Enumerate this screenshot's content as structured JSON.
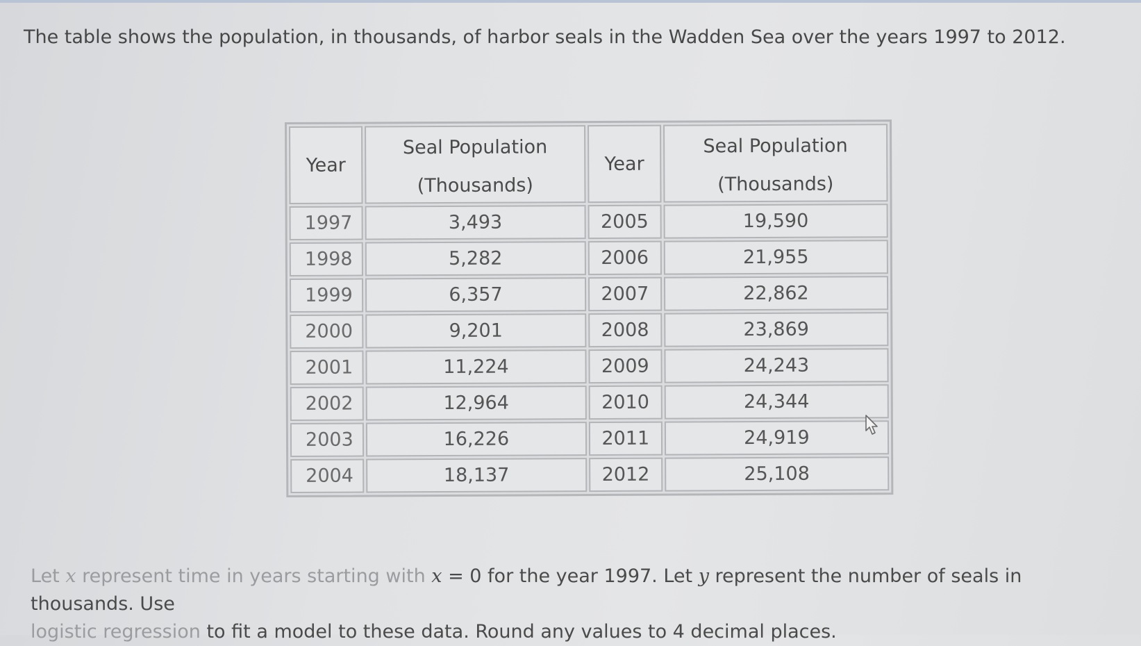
{
  "question": {
    "intro": "The table shows the population, in thousands, of harbor seals in the Wadden Sea over the years 1997 to 2012."
  },
  "table": {
    "headers": {
      "year": "Year",
      "population_line1": "Seal Population",
      "population_line2": "(Thousands)"
    },
    "left_rows": [
      {
        "year": "1997",
        "population": "3,493"
      },
      {
        "year": "1998",
        "population": "5,282"
      },
      {
        "year": "1999",
        "population": "6,357"
      },
      {
        "year": "2000",
        "population": "9,201"
      },
      {
        "year": "2001",
        "population": "11,224"
      },
      {
        "year": "2002",
        "population": "12,964"
      },
      {
        "year": "2003",
        "population": "16,226"
      },
      {
        "year": "2004",
        "population": "18,137"
      }
    ],
    "right_rows": [
      {
        "year": "2005",
        "population": "19,590"
      },
      {
        "year": "2006",
        "population": "21,955"
      },
      {
        "year": "2007",
        "population": "22,862"
      },
      {
        "year": "2008",
        "population": "23,869"
      },
      {
        "year": "2009",
        "population": "24,243"
      },
      {
        "year": "2010",
        "population": "24,344"
      },
      {
        "year": "2011",
        "population": "24,919"
      },
      {
        "year": "2012",
        "population": "25,108"
      }
    ]
  },
  "instructions": {
    "faded_lead": "Let ",
    "var_x": "x",
    "faded_part": " represent time in years starting with ",
    "var_x2": "x",
    "equals_zero": " = 0",
    "rest_line1": " for the year 1997. Let ",
    "var_y": "y",
    "rest_line1b": " represent the number of seals in thousands. Use",
    "faded_line2": "logistic regression",
    "rest_line2": " to fit a model to these data. Round any values to 4 decimal places."
  },
  "icons": {
    "cursor": "mouse-pointer-icon"
  }
}
